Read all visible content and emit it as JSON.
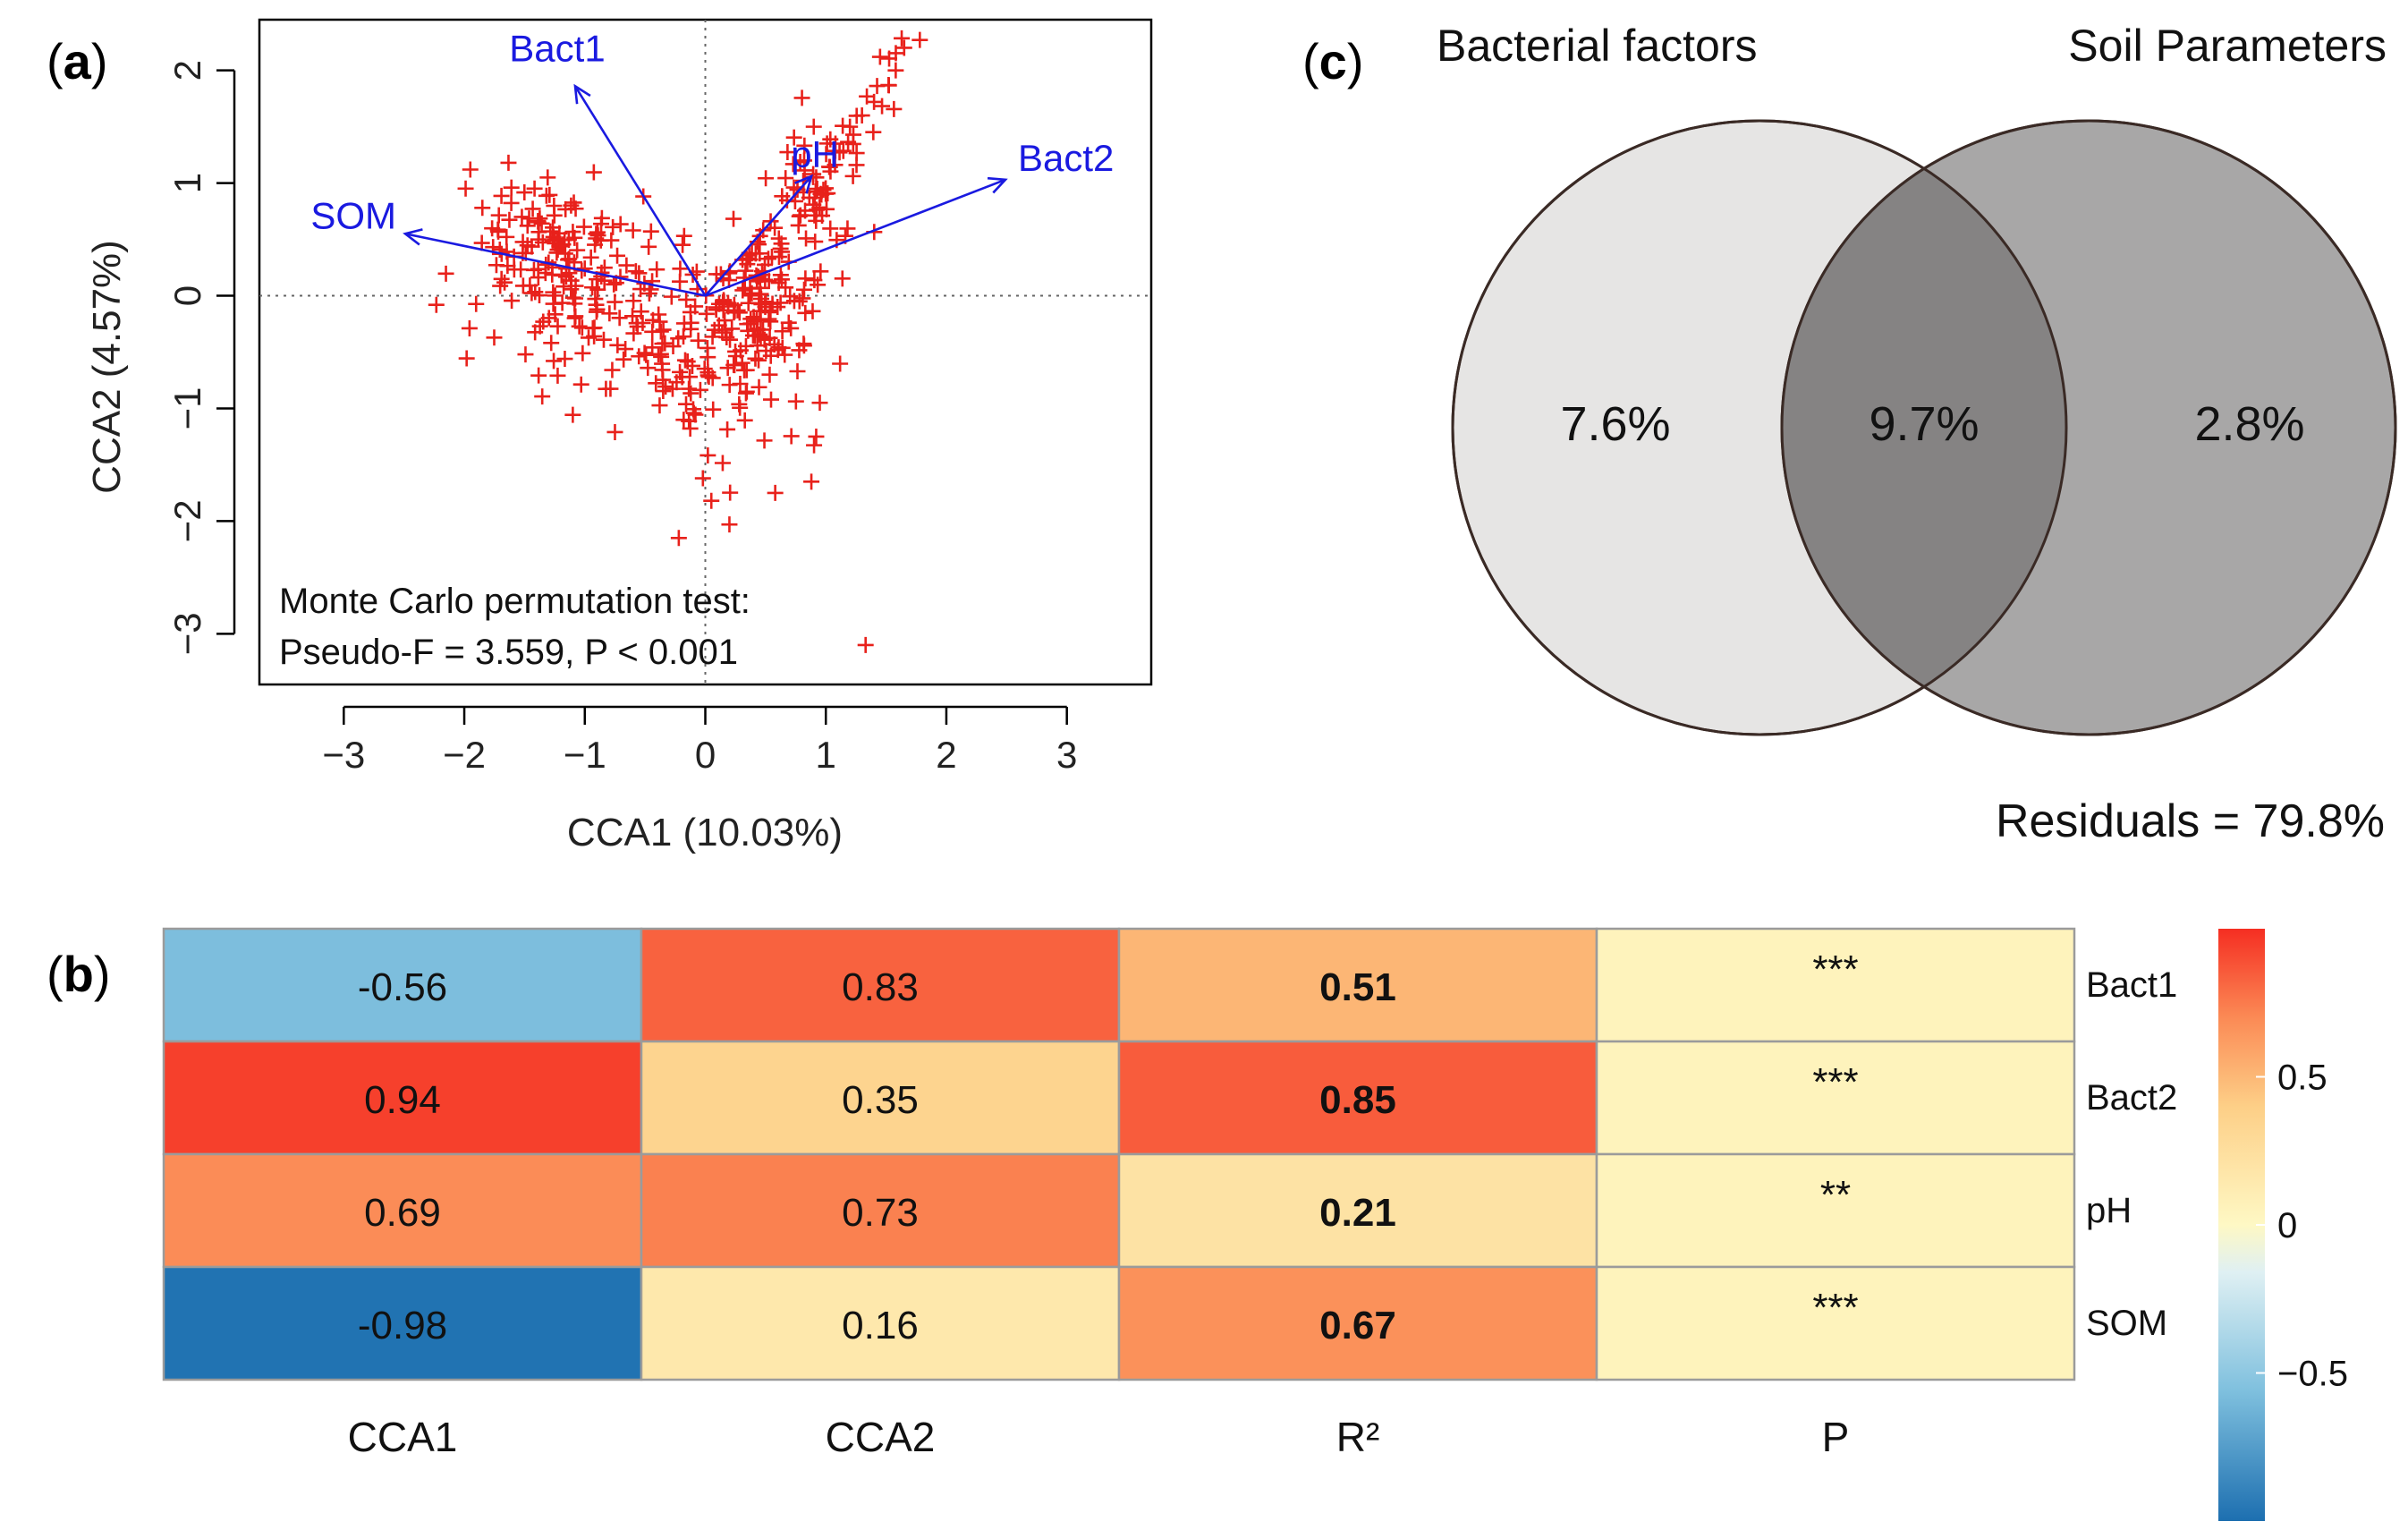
{
  "panel_labels": {
    "a": "a",
    "b": "b",
    "c": "c"
  },
  "colors": {
    "points": "#e8211b",
    "arrows": "#1a1ae0",
    "venn_left": "#e6e5e4",
    "venn_right": "#a8a7a7",
    "venn_overlap": "#858383",
    "heat_low": "#1d78b8",
    "heat_mid": "#fef8c4",
    "heat_high": "#f52e22",
    "grid": "#9b9b9b"
  },
  "chart_data": [
    {
      "id": "a",
      "type": "scatter",
      "xlabel": "CCA1 (10.03%)",
      "ylabel": "CCA2 (4.57%)",
      "xlim": [
        -3.7,
        3.7
      ],
      "ylim": [
        -3.45,
        2.45
      ],
      "xticks": [
        "−3",
        "−2",
        "−1",
        "0",
        "1",
        "2",
        "3"
      ],
      "xtick_values": [
        -3,
        -2,
        -1,
        0,
        1,
        2,
        3
      ],
      "yticks": [
        "−3",
        "−2",
        "−1",
        "0",
        "1",
        "2"
      ],
      "ytick_values": [
        -3,
        -2,
        -1,
        0,
        1,
        2
      ],
      "reference_lines": {
        "x": 0,
        "y": 0
      },
      "arrows": [
        {
          "label": "Bact1",
          "x": -1.08,
          "y": 1.86
        },
        {
          "label": "pH",
          "x": 0.88,
          "y": 1.06
        },
        {
          "label": "Bact2",
          "x": 2.49,
          "y": 1.03
        },
        {
          "label": "SOM",
          "x": -2.49,
          "y": 0.55
        }
      ],
      "annotation": [
        "Monte Carlo permutation test:",
        "Pseudo-F = 3.559, P < 0.001"
      ],
      "outlier_points": [
        [
          1.78,
          2.27
        ],
        [
          1.65,
          2.2
        ],
        [
          1.45,
          2.12
        ],
        [
          1.58,
          2.0
        ],
        [
          1.52,
          1.87
        ],
        [
          1.4,
          1.72
        ],
        [
          1.3,
          1.6
        ],
        [
          1.2,
          1.5
        ],
        [
          1.08,
          1.35
        ],
        [
          0.9,
          1.5
        ],
        [
          0.82,
          1.2
        ],
        [
          0.92,
          1.05
        ],
        [
          -1.95,
          1.12
        ],
        [
          -1.85,
          0.78
        ],
        [
          -0.6,
          0.58
        ],
        [
          -0.55,
          0.2
        ],
        [
          -0.02,
          -1.62
        ],
        [
          0.05,
          -1.82
        ],
        [
          -0.22,
          -2.15
        ],
        [
          0.2,
          -2.03
        ],
        [
          0.88,
          -1.65
        ],
        [
          0.58,
          -1.75
        ],
        [
          0.92,
          -1.25
        ],
        [
          0.95,
          -0.95
        ],
        [
          1.33,
          -3.1
        ]
      ],
      "clusters": [
        {
          "cx": -1.3,
          "cy": 0.4,
          "sx": 0.38,
          "sy": 0.3,
          "n": 130
        },
        {
          "cx": -0.6,
          "cy": -0.35,
          "sx": 0.55,
          "sy": 0.4,
          "n": 110
        },
        {
          "cx": 0.55,
          "cy": -0.2,
          "sx": 0.22,
          "sy": 0.35,
          "n": 100
        },
        {
          "cx": 0.1,
          "cy": -0.75,
          "sx": 0.3,
          "sy": 0.45,
          "n": 55
        },
        {
          "cx": 0.85,
          "cy": 0.85,
          "sx": 0.18,
          "sy": 0.35,
          "n": 35
        }
      ]
    },
    {
      "id": "b",
      "type": "heatmap",
      "columns": [
        "CCA1",
        "CCA2",
        "R²",
        "P"
      ],
      "rows": [
        "Bact1",
        "Bact2",
        "pH",
        "SOM"
      ],
      "values": [
        [
          -0.56,
          0.83,
          0.51,
          "***"
        ],
        [
          0.94,
          0.35,
          0.85,
          "***"
        ],
        [
          0.69,
          0.73,
          0.21,
          "**"
        ],
        [
          -0.98,
          0.16,
          0.67,
          "***"
        ]
      ],
      "cell_labels": [
        [
          "-0.56",
          "0.83",
          "0.51",
          "***"
        ],
        [
          "0.94",
          "0.35",
          "0.85",
          "***"
        ],
        [
          "0.69",
          "0.73",
          "0.21",
          "**"
        ],
        [
          "-0.98",
          "0.16",
          "0.67",
          "***"
        ]
      ],
      "color_range": [
        -1,
        1
      ],
      "colorbar_ticks": [
        {
          "label": "0.5",
          "value": 0.5
        },
        {
          "label": "0",
          "value": 0
        },
        {
          "label": "−0.5",
          "value": -0.5
        }
      ],
      "p_column_value": 0.05
    },
    {
      "id": "c",
      "type": "venn",
      "sets": [
        {
          "label": "Bacterial factors",
          "unique": "7.6%"
        },
        {
          "label": "Soil Parameters",
          "unique": "2.8%"
        }
      ],
      "overlap": "9.7%",
      "residuals": "Residuals = 79.8%"
    }
  ]
}
